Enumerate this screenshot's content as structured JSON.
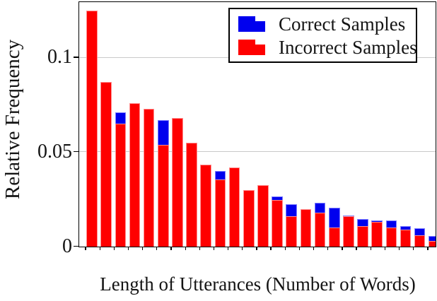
{
  "chart_data": {
    "type": "bar",
    "stacked": true,
    "xlabel": "Length of Utterances (Number of Words)",
    "ylabel": "Relative Frequency",
    "x": [
      1,
      2,
      3,
      4,
      5,
      6,
      7,
      8,
      9,
      10,
      11,
      12,
      13,
      14,
      15,
      16,
      17,
      18,
      19,
      20,
      21,
      22,
      23,
      24,
      25
    ],
    "series": [
      {
        "name": "Correct Samples",
        "color": "#0000ee",
        "stack_position": "top",
        "values": [
          0,
          0,
          0.006,
          0,
          0,
          0.013,
          0,
          0,
          0,
          0.0045,
          0,
          0,
          0,
          0.002,
          0.0065,
          0,
          0.005,
          0.0105,
          0.0005,
          0.0035,
          0.001,
          0.004,
          0.002,
          0.0037,
          0.0027
        ]
      },
      {
        "name": "Incorrect Samples",
        "color": "#fe0000",
        "stack_position": "bottom",
        "values": [
          0.125,
          0.087,
          0.065,
          0.076,
          0.073,
          0.054,
          0.068,
          0.055,
          0.0435,
          0.0355,
          0.042,
          0.03,
          0.0325,
          0.0245,
          0.016,
          0.02,
          0.018,
          0.01,
          0.016,
          0.011,
          0.013,
          0.01,
          0.009,
          0.006,
          0.003
        ]
      }
    ],
    "ylim": [
      0,
      0.129
    ],
    "yticks": [
      0,
      0.05,
      0.1
    ],
    "ytick_labels": [
      "0",
      "0.05",
      "0.1"
    ],
    "xtick_labels_visible": false,
    "grid": "horizontal",
    "gridline_color": "#c9c9c9",
    "legend_position": "top-right",
    "last_bar_clipped": true
  },
  "legend": {
    "items": [
      {
        "label": "Correct Samples",
        "color": "#0000ee"
      },
      {
        "label": "Incorrect Samples",
        "color": "#fe0000"
      }
    ]
  },
  "axes": {
    "ylabel": "Relative Frequency",
    "xlabel": "Length of Utterances (Number of Words)"
  }
}
